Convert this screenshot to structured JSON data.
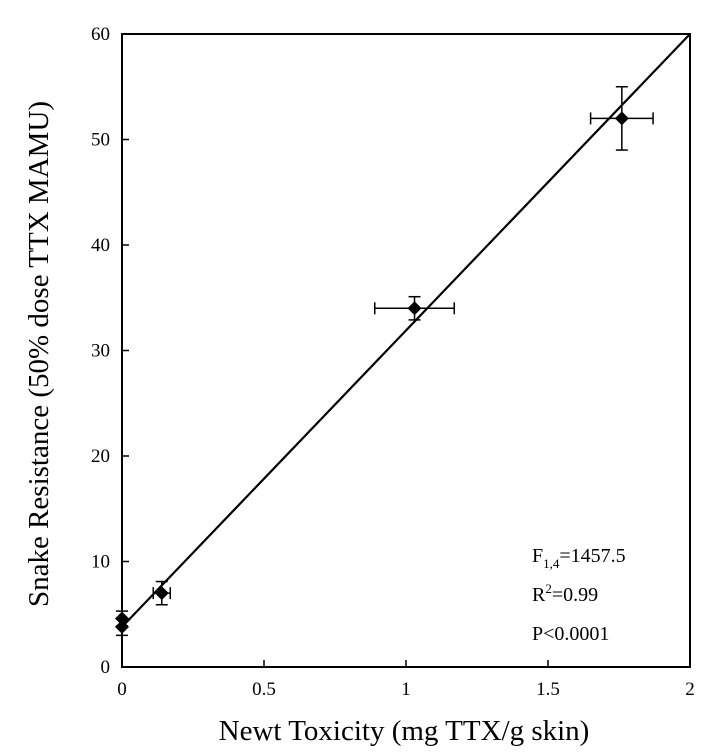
{
  "chart_data": {
    "type": "scatter",
    "title": "",
    "xlabel": "Newt Toxicity (mg TTX/g skin)",
    "ylabel": "Snake Resistance (50% dose TTX MAMU)",
    "xlim": [
      0,
      2
    ],
    "ylim": [
      0,
      60
    ],
    "xticks": [
      0,
      0.5,
      1,
      1.5,
      2
    ],
    "xtick_labels": [
      "0",
      "0.5",
      "1",
      "1.5",
      "2"
    ],
    "yticks": [
      0,
      10,
      20,
      30,
      40,
      50,
      60
    ],
    "ytick_labels": [
      "0",
      "10",
      "20",
      "30",
      "40",
      "50",
      "60"
    ],
    "grid": false,
    "points": [
      {
        "x": 0.0,
        "y": 3.8,
        "x_err": 0.0,
        "y_err": 0.8
      },
      {
        "x": 0.0,
        "y": 4.6,
        "x_err": 0.0,
        "y_err": 0.7
      },
      {
        "x": 0.14,
        "y": 7.0,
        "x_err": 0.03,
        "y_err": 1.1
      },
      {
        "x": 1.03,
        "y": 34.0,
        "x_err": 0.14,
        "y_err": 1.1
      },
      {
        "x": 1.76,
        "y": 52.0,
        "x_err": 0.11,
        "y_err": 3.0
      }
    ],
    "fit_line": {
      "x": [
        0,
        2
      ],
      "y": [
        3.8,
        60
      ]
    },
    "marker": "diamond",
    "annotations": {
      "f_main": "F",
      "f_sub": "1,4",
      "f_value": "=1457.5",
      "r_main": "R",
      "r_sup": "2",
      "r_value": "=0.99",
      "p_text": "P<0.0001"
    }
  }
}
